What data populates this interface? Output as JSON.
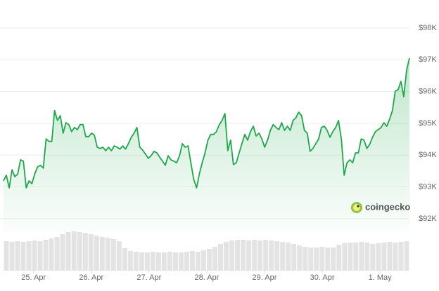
{
  "chart_data": {
    "type": "line",
    "series": [
      {
        "color": "#1ea84a",
        "values": [
          93190,
          93370,
          92970,
          93540,
          93320,
          93410,
          93850,
          93810,
          92970,
          93190,
          93100,
          93410,
          93630,
          93680,
          93590,
          94510,
          94430,
          94430,
          95400,
          95090,
          95240,
          94690,
          95020,
          94960,
          94740,
          94870,
          94800,
          94960,
          94960,
          94580,
          94580,
          94690,
          94630,
          94250,
          94210,
          94250,
          94140,
          94250,
          94140,
          94290,
          94250,
          94190,
          94290,
          94190,
          94360,
          94560,
          94690,
          94870,
          94250,
          94160,
          94030,
          93900,
          93980,
          94120,
          94070,
          93940,
          93810,
          93680,
          93980,
          93850,
          93810,
          93760,
          93980,
          94360,
          94250,
          94290,
          93760,
          93240,
          92970,
          93410,
          93760,
          94070,
          94470,
          94650,
          94650,
          94740,
          94960,
          95090,
          95310,
          94140,
          94470,
          93700,
          93760,
          94070,
          94360,
          94650,
          94470,
          94740,
          94910,
          94600,
          94690,
          94510,
          94250,
          94470,
          94780,
          94960,
          94870,
          94800,
          95020,
          94780,
          94910,
          94780,
          95090,
          95180,
          95350,
          95240,
          94780,
          94690,
          94120,
          94210,
          94360,
          94510,
          94870,
          94910,
          94780,
          94560,
          94740,
          94870,
          95090,
          94510,
          93370,
          93760,
          93850,
          93760,
          94070,
          94070,
          94510,
          94470,
          94210,
          94340,
          94560,
          94740,
          94800,
          94870,
          95020,
          94910,
          95130,
          95400,
          96010,
          96060,
          96320,
          95840,
          96680,
          97050
        ]
      }
    ],
    "volume": {
      "color": "#e3e3e3",
      "ylim": [
        0,
        60
      ],
      "values": [
        42,
        41,
        42,
        41,
        42,
        43,
        42,
        44,
        46,
        48,
        52,
        55,
        56,
        55,
        54,
        52,
        50,
        48,
        47,
        45,
        42,
        32,
        28,
        27,
        26,
        26,
        27,
        26,
        26,
        27,
        26,
        26,
        27,
        28,
        27,
        29,
        31,
        34,
        38,
        41,
        43,
        44,
        44,
        43,
        44,
        43,
        44,
        43,
        42,
        41,
        40,
        38,
        36,
        34,
        33,
        33,
        34,
        33,
        33,
        37,
        39,
        40,
        40,
        41,
        40,
        38,
        39,
        40,
        41,
        40,
        41,
        42
      ]
    },
    "ylim": [
      91600,
      98880
    ],
    "yticks": [
      {
        "value": 92000,
        "label": "$92K"
      },
      {
        "value": 93000,
        "label": "$93K"
      },
      {
        "value": 94000,
        "label": "$94K"
      },
      {
        "value": 95000,
        "label": "$95K"
      },
      {
        "value": 96000,
        "label": "$96K"
      },
      {
        "value": 97000,
        "label": "$97K"
      },
      {
        "value": 98000,
        "label": "$98K"
      }
    ],
    "xlim": [
      -0.52,
      6.51
    ],
    "xticks": [
      {
        "value": 0,
        "label": "25. Apr"
      },
      {
        "value": 1,
        "label": "26. Apr"
      },
      {
        "value": 2,
        "label": "27. Apr"
      },
      {
        "value": 3,
        "label": "28. Apr"
      },
      {
        "value": 4,
        "label": "29. Apr"
      },
      {
        "value": 5,
        "label": "30. Apr"
      },
      {
        "value": 6,
        "label": "1. May"
      }
    ],
    "grid": true,
    "watermark": "coingecko"
  }
}
